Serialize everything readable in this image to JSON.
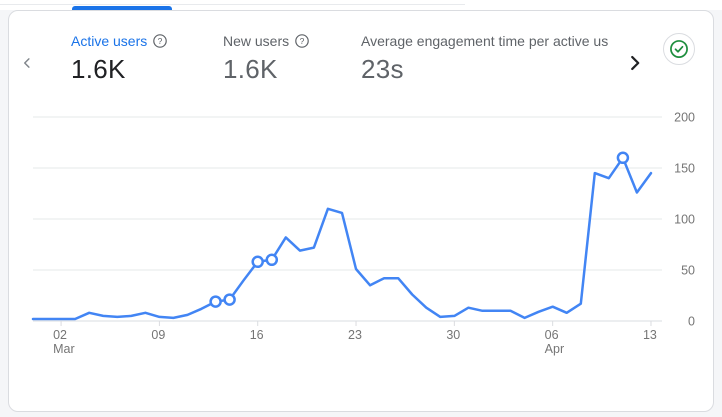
{
  "colors": {
    "accent": "#1a73e8",
    "chart_line": "#4285f4",
    "success_green": "#1e8e3e",
    "card_border": "#dadce0",
    "grid_line": "#e6e8ea",
    "axis_line": "#dadce0",
    "axis_label": "#757575",
    "muted_text": "#5f6368",
    "dark_text": "#202124"
  },
  "carousel": {
    "prev_icon": "chevron-left",
    "next_icon": "chevron-right"
  },
  "metrics": [
    {
      "label": "Active users",
      "value": "1.6K",
      "help_icon": "?",
      "selected": true
    },
    {
      "label": "New users",
      "value": "1.6K",
      "help_icon": "?",
      "selected": false
    },
    {
      "label": "Average engagement time per active us",
      "value": "23s",
      "selected": false
    }
  ],
  "status": {
    "icon": "check-circle"
  },
  "chart_data": {
    "type": "line",
    "series_name": "Active users",
    "line_color": "#4285f4",
    "marker_style": "open-circle",
    "grid": true,
    "legend_position": "none",
    "ylim": [
      0,
      200
    ],
    "y_ticks": [
      0,
      50,
      100,
      150,
      200
    ],
    "x": [
      "Feb 28",
      "Mar 1",
      "Mar 2",
      "Mar 3",
      "Mar 4",
      "Mar 5",
      "Mar 6",
      "Mar 7",
      "Mar 8",
      "Mar 9",
      "Mar 10",
      "Mar 11",
      "Mar 12",
      "Mar 13",
      "Mar 14",
      "Mar 15",
      "Mar 16",
      "Mar 17",
      "Mar 18",
      "Mar 19",
      "Mar 20",
      "Mar 21",
      "Mar 22",
      "Mar 23",
      "Mar 24",
      "Mar 25",
      "Mar 26",
      "Mar 27",
      "Mar 28",
      "Mar 29",
      "Mar 30",
      "Mar 31",
      "Apr 1",
      "Apr 2",
      "Apr 3",
      "Apr 4",
      "Apr 5",
      "Apr 6",
      "Apr 7",
      "Apr 8",
      "Apr 9",
      "Apr 10",
      "Apr 11",
      "Apr 12",
      "Apr 13"
    ],
    "values": [
      2,
      2,
      2,
      2,
      8,
      5,
      4,
      5,
      8,
      4,
      3,
      6,
      12,
      19,
      21,
      40,
      58,
      60,
      82,
      69,
      72,
      110,
      106,
      51,
      35,
      42,
      42,
      26,
      13,
      4,
      5,
      13,
      10,
      10,
      10,
      3,
      9,
      14,
      8,
      17,
      145,
      140,
      160,
      126,
      145
    ],
    "highlighted_point_indices": [
      13,
      14,
      16,
      17,
      42
    ],
    "x_tick_labels": [
      {
        "index": 2,
        "label": "02",
        "sub": "Mar"
      },
      {
        "index": 9,
        "label": "09",
        "sub": ""
      },
      {
        "index": 16,
        "label": "16",
        "sub": ""
      },
      {
        "index": 23,
        "label": "23",
        "sub": ""
      },
      {
        "index": 30,
        "label": "30",
        "sub": ""
      },
      {
        "index": 37,
        "label": "06",
        "sub": "Apr"
      },
      {
        "index": 44,
        "label": "13",
        "sub": ""
      }
    ]
  }
}
